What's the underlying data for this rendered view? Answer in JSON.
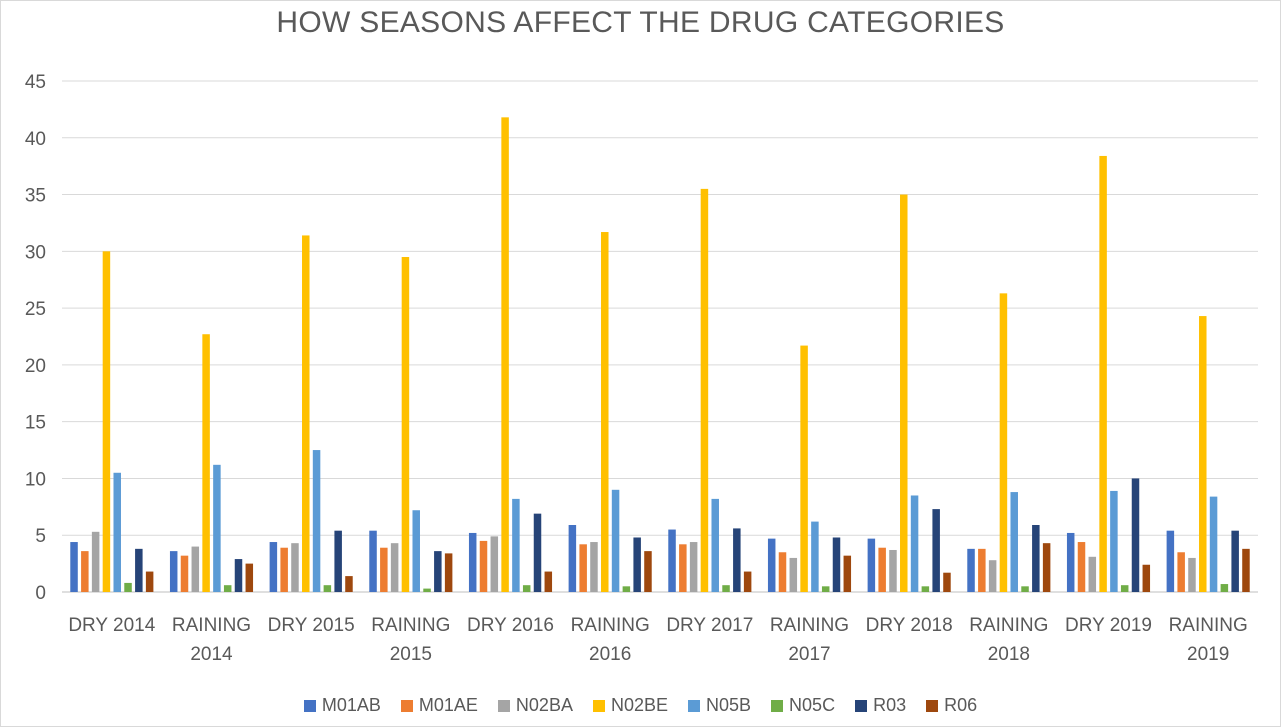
{
  "chart_data": {
    "type": "bar",
    "title": "HOW SEASONS AFFECT THE DRUG CATEGORIES",
    "categories": [
      [
        "DRY 2014"
      ],
      [
        "RAINING",
        "2014"
      ],
      [
        "DRY 2015"
      ],
      [
        "RAINING",
        "2015"
      ],
      [
        "DRY 2016"
      ],
      [
        "RAINING",
        "2016"
      ],
      [
        "DRY 2017"
      ],
      [
        "RAINING",
        "2017"
      ],
      [
        "DRY 2018"
      ],
      [
        "RAINING",
        "2018"
      ],
      [
        "DRY 2019"
      ],
      [
        "RAINING",
        "2019"
      ]
    ],
    "ylim": [
      0,
      45
    ],
    "yticks": [
      0,
      5,
      10,
      15,
      20,
      25,
      30,
      35,
      40,
      45
    ],
    "grid": true,
    "legend_position": "bottom",
    "series": [
      {
        "name": "M01AB",
        "color": "#4472c4",
        "values": [
          4.4,
          3.6,
          4.4,
          5.4,
          5.2,
          5.9,
          5.5,
          4.7,
          4.7,
          3.8,
          5.2,
          5.4
        ]
      },
      {
        "name": "M01AE",
        "color": "#ed7d31",
        "values": [
          3.6,
          3.2,
          3.9,
          3.9,
          4.5,
          4.2,
          4.2,
          3.5,
          3.9,
          3.8,
          4.4,
          3.5
        ]
      },
      {
        "name": "N02BA",
        "color": "#a5a5a5",
        "values": [
          5.3,
          4.0,
          4.3,
          4.3,
          4.9,
          4.4,
          4.4,
          3.0,
          3.7,
          2.8,
          3.1,
          3.0
        ]
      },
      {
        "name": "N02BE",
        "color": "#ffc000",
        "values": [
          30.0,
          22.7,
          31.4,
          29.5,
          41.8,
          31.7,
          35.5,
          21.7,
          35.0,
          26.3,
          38.4,
          24.3
        ]
      },
      {
        "name": "N05B",
        "color": "#5b9bd5",
        "values": [
          10.5,
          11.2,
          12.5,
          7.2,
          8.2,
          9.0,
          8.2,
          6.2,
          8.5,
          8.8,
          8.9,
          8.4
        ]
      },
      {
        "name": "N05C",
        "color": "#70ad47",
        "values": [
          0.8,
          0.6,
          0.6,
          0.3,
          0.6,
          0.5,
          0.6,
          0.5,
          0.5,
          0.5,
          0.6,
          0.7
        ]
      },
      {
        "name": "R03",
        "color": "#264478",
        "values": [
          3.8,
          2.9,
          5.4,
          3.6,
          6.9,
          4.8,
          5.6,
          4.8,
          7.3,
          5.9,
          10.0,
          5.4
        ]
      },
      {
        "name": "R06",
        "color": "#9e480e",
        "values": [
          1.8,
          2.5,
          1.4,
          3.4,
          1.8,
          3.6,
          1.8,
          3.2,
          1.7,
          4.3,
          2.4,
          3.8
        ]
      }
    ]
  }
}
